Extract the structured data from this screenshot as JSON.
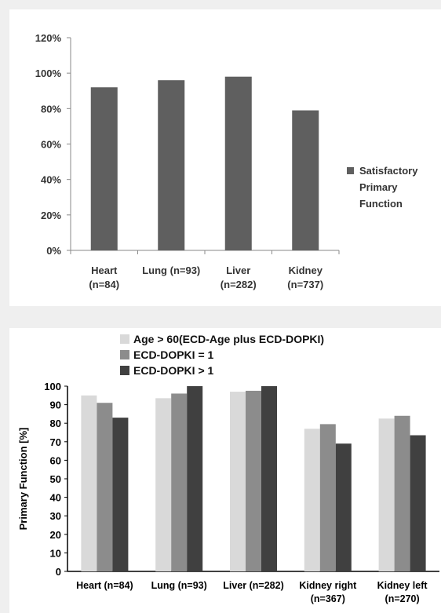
{
  "chart_data": [
    {
      "type": "bar",
      "categories": [
        "Heart\n(n=84)",
        "Lung (n=93)",
        "Liver\n(n=282)",
        "Kidney\n(n=737)"
      ],
      "series": [
        {
          "name": "Satisfactory Primary Function",
          "values": [
            92,
            96,
            98,
            79
          ],
          "color": "#5f5f5f"
        }
      ],
      "yticks": [
        "0%",
        "20%",
        "40%",
        "60%",
        "80%",
        "100%",
        "120%"
      ],
      "ylim": [
        0,
        120
      ],
      "grid": false,
      "legend": "right"
    },
    {
      "type": "bar",
      "categories": [
        "Heart (n=84)",
        "Lung (n=93)",
        "Liver (n=282)",
        "Kidney right\n(n=367)",
        "Kidney left\n(n=270)"
      ],
      "series": [
        {
          "name": "Age > 60(ECD-Age plus ECD-DOPKI)",
          "values": [
            95,
            93.5,
            97,
            77,
            82.5
          ],
          "color": "#d9d9d9"
        },
        {
          "name": "ECD-DOPKI = 1",
          "values": [
            91,
            96,
            97.5,
            79.5,
            84
          ],
          "color": "#8c8c8c"
        },
        {
          "name": "ECD-DOPKI > 1",
          "values": [
            83,
            100,
            100,
            69,
            73.5
          ],
          "color": "#404040"
        }
      ],
      "ylabel": "Primary Function [%]",
      "yticks": [
        "0",
        "10",
        "20",
        "30",
        "40",
        "50",
        "60",
        "70",
        "80",
        "90",
        "100"
      ],
      "ylim": [
        0,
        100
      ],
      "grid": false,
      "legend": "top"
    }
  ]
}
